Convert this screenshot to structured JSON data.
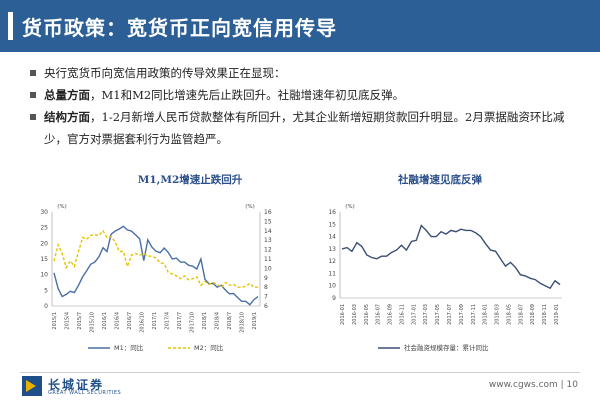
{
  "header": {
    "title": "货币政策：宽货币正向宽信用传导"
  },
  "bullets": [
    {
      "bold": "",
      "text": "央行宽货币向宽信用政策的传导效果正在显现："
    },
    {
      "bold": "总量方面",
      "text": "，M1和M2同比增速先后止跌回升。社融增速年初见底反弹。"
    },
    {
      "bold": "结构方面",
      "text": "，1-2月新增人民币贷款整体有所回升，尤其企业新增短期贷款回升明显。2月票据融资环比减少，官方对票据套利行为监管趋严。"
    }
  ],
  "colors": {
    "title_bg": "#2b5f96",
    "m1": "#4a6fa5",
    "m2": "#e6c200",
    "social": "#3a4f73"
  },
  "chart_data": [
    {
      "type": "line",
      "title": "M1,M2增速止跌回升",
      "left_unit": "(%)",
      "right_unit": "(%)",
      "ylim_left": [
        0,
        30
      ],
      "yticks_left": [
        0,
        5,
        10,
        15,
        20,
        25,
        30
      ],
      "ylim_right": [
        6,
        16
      ],
      "yticks_right": [
        6,
        7,
        8,
        9,
        10,
        11,
        12,
        13,
        14,
        15,
        16
      ],
      "xtick_labels": [
        "2015/1",
        "2015/4",
        "2015/7",
        "2015/10",
        "2016/1",
        "2016/4",
        "2016/7",
        "2016/10",
        "2017/1",
        "2017/4",
        "2017/7",
        "2017/10",
        "2018/1",
        "2018/4",
        "2018/7",
        "2018/10",
        "2019/1"
      ],
      "series": [
        {
          "name": "M1：同比",
          "axis": "left",
          "values": [
            10.6,
            5.6,
            3.0,
            3.7,
            4.7,
            4.3,
            6.6,
            9.3,
            11.2,
            13.3,
            14.0,
            15.7,
            18.6,
            17.4,
            22.9,
            23.9,
            24.6,
            25.4,
            24.3,
            23.9,
            22.7,
            21.4,
            14.5,
            21.1,
            18.8,
            17.5,
            17.0,
            18.5,
            17.1,
            15.0,
            15.3,
            14.0,
            14.0,
            13.0,
            12.7,
            11.8,
            15.0,
            8.5,
            7.1,
            7.2,
            6.0,
            6.6,
            5.1,
            3.9,
            4.0,
            2.7,
            1.5,
            1.5,
            0.4,
            2.0,
            3.0
          ]
        },
        {
          "name": "M2：同比",
          "axis": "right",
          "values": [
            10.8,
            12.5,
            11.6,
            10.1,
            10.8,
            10.2,
            11.8,
            13.3,
            13.1,
            13.5,
            13.6,
            13.5,
            14.0,
            13.3,
            13.4,
            12.8,
            11.8,
            11.8,
            10.2,
            11.4,
            11.6,
            11.4,
            11.6,
            11.3,
            11.3,
            11.1,
            10.6,
            10.5,
            9.6,
            9.4,
            9.2,
            8.9,
            9.2,
            8.8,
            8.9,
            9.1,
            8.2,
            8.6,
            8.3,
            8.5,
            8.3,
            8.0,
            8.5,
            8.2,
            8.3,
            8.0,
            8.0,
            8.1,
            8.4,
            8.0,
            8.0
          ]
        }
      ]
    },
    {
      "type": "line",
      "title": "社融增速见底反弹",
      "unit": "(%)",
      "ylim": [
        9,
        16
      ],
      "yticks": [
        9,
        10,
        11,
        12,
        13,
        14,
        15,
        16
      ],
      "xtick_labels": [
        "2016-01",
        "2016-03",
        "2016-05",
        "2016-07",
        "2016-09",
        "2016-11",
        "2017-01",
        "2017-03",
        "2017-05",
        "2017-07",
        "2017-09",
        "2017-11",
        "2018-01",
        "2018-03",
        "2018-05",
        "2018-07",
        "2018-09",
        "2018-11",
        "2019-01"
      ],
      "series": [
        {
          "name": "社会融资规模存量：累计同比",
          "values": [
            13.0,
            13.1,
            12.8,
            13.5,
            13.2,
            12.5,
            12.3,
            12.2,
            12.4,
            12.4,
            12.7,
            12.9,
            13.3,
            12.9,
            13.6,
            13.7,
            14.9,
            14.5,
            14.0,
            14.0,
            14.4,
            14.2,
            14.5,
            14.4,
            14.6,
            14.5,
            14.5,
            14.3,
            14.0,
            13.4,
            12.9,
            12.8,
            12.2,
            11.6,
            11.9,
            11.5,
            10.9,
            10.8,
            10.6,
            10.5,
            10.2,
            10.0,
            9.8,
            10.4,
            10.1
          ]
        }
      ]
    }
  ],
  "legend": {
    "m1": "M1：同比",
    "m2": "M2：同比",
    "social": "社会融资规模存量：累计同比"
  },
  "footer": {
    "logo_cn": "长城证券",
    "logo_en": "GREAT WALL SECURITIES",
    "page": "www.cgws.com  |  10"
  }
}
